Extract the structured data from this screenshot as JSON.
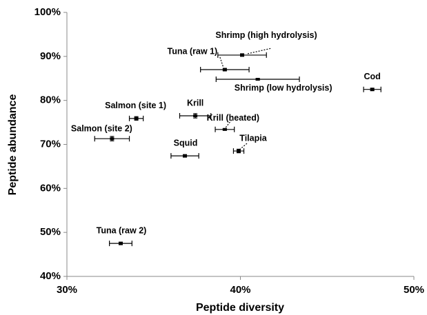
{
  "chart_data": {
    "type": "scatter",
    "xlabel": "Peptide diversity",
    "ylabel": "Peptide abundance",
    "xlim": [
      30,
      50
    ],
    "ylim": [
      40,
      100
    ],
    "xticks": [
      {
        "value": 30,
        "label": "30%"
      },
      {
        "value": 40,
        "label": "40%"
      },
      {
        "value": 50,
        "label": "50%"
      }
    ],
    "yticks": [
      {
        "value": 40,
        "label": "40%"
      },
      {
        "value": 50,
        "label": "50%"
      },
      {
        "value": 60,
        "label": "60%"
      },
      {
        "value": 70,
        "label": "70%"
      },
      {
        "value": 80,
        "label": "80%"
      },
      {
        "value": 90,
        "label": "90%"
      },
      {
        "value": 100,
        "label": "100%"
      }
    ],
    "series": [
      {
        "color": "#000000",
        "labels": [
          "Shrimp (high hydrolysis)",
          "Tuna (raw 1)",
          "Shrimp (low hydrolysis)",
          "Cod",
          "Krill",
          "Krill (heated)",
          "Salmon (site 1)",
          "Salmon (site 2)",
          "Tilapia",
          "Squid",
          "Tuna (raw 2)"
        ],
        "x": [
          40.1,
          39.1,
          41.0,
          47.6,
          37.4,
          39.1,
          34.0,
          32.6,
          39.9,
          36.8,
          33.1
        ],
        "values": [
          90.3,
          87.0,
          84.8,
          82.5,
          76.5,
          73.4,
          75.9,
          71.3,
          68.5,
          67.4,
          47.5
        ],
        "xerr": [
          1.4,
          1.4,
          2.4,
          0.5,
          0.9,
          0.55,
          0.4,
          1.0,
          0.3,
          0.8,
          0.65
        ],
        "yerr": [
          0.3,
          0.3,
          0.2,
          0.3,
          0.5,
          0.2,
          0.4,
          0.5,
          0.4,
          0.3,
          0.3
        ]
      }
    ]
  }
}
